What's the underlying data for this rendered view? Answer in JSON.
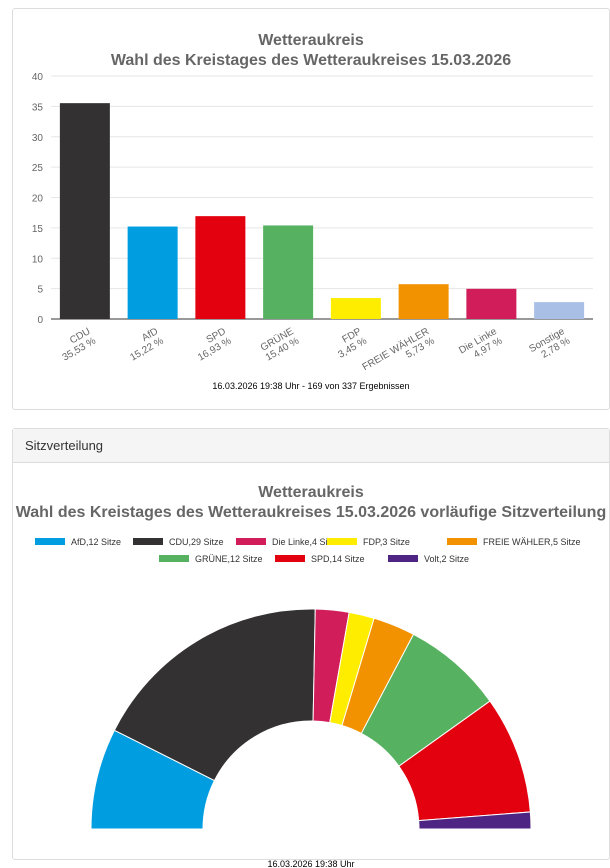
{
  "chart_data": [
    {
      "type": "bar",
      "title": "Wetteraukreis",
      "subtitle": "Wahl des Kreistages des Wetteraukreises 15.03.2026",
      "categories": [
        "CDU",
        "AfD",
        "SPD",
        "GRÜNE",
        "FDP",
        "FREIE WÄHLER",
        "Die Linke",
        "Sonstige"
      ],
      "values": [
        35.53,
        15.22,
        16.93,
        15.4,
        3.45,
        5.73,
        4.97,
        2.78
      ],
      "value_labels": [
        "35,53 %",
        "15,22 %",
        "16,93 %",
        "15,40 %",
        "3,45 %",
        "5,73 %",
        "4,97 %",
        "2,78 %"
      ],
      "colors": [
        "#333132",
        "#009ee0",
        "#e3000f",
        "#56b260",
        "#ffed00",
        "#f39200",
        "#d21d5b",
        "#aabfe6"
      ],
      "ylim": [
        0,
        40
      ],
      "yticks": [
        0,
        5,
        10,
        15,
        20,
        25,
        30,
        35,
        40
      ],
      "grid": true,
      "footer": "16.03.2026 19:38 Uhr - 169 von 337 Ergebnissen"
    },
    {
      "type": "pie",
      "variant": "semicircle",
      "title": "Wetteraukreis",
      "subtitle": "Wahl des Kreistages des Wetteraukreises 15.03.2026 vorläufige Sitzverteilung",
      "categories": [
        "AfD",
        "CDU",
        "Die Linke",
        "FDP",
        "FREIE WÄHLER",
        "GRÜNE",
        "SPD",
        "Volt"
      ],
      "values": [
        12,
        29,
        4,
        3,
        5,
        12,
        14,
        2
      ],
      "legend_labels": [
        "AfD,12 Sitze",
        "CDU,29 Sitze",
        "Die Linke,4 Sitze",
        "FDP,3 Sitze",
        "FREIE WÄHLER,5 Sitze",
        "GRÜNE,12 Sitze",
        "SPD,14 Sitze",
        "Volt,2 Sitze"
      ],
      "colors": [
        "#009ee0",
        "#333132",
        "#d21d5b",
        "#ffed00",
        "#f39200",
        "#56b260",
        "#e3000f",
        "#4f2583"
      ],
      "legend": "top",
      "footer": "16.03.2026 19:38 Uhr"
    }
  ],
  "panel2": {
    "header": "Sitzverteilung"
  }
}
